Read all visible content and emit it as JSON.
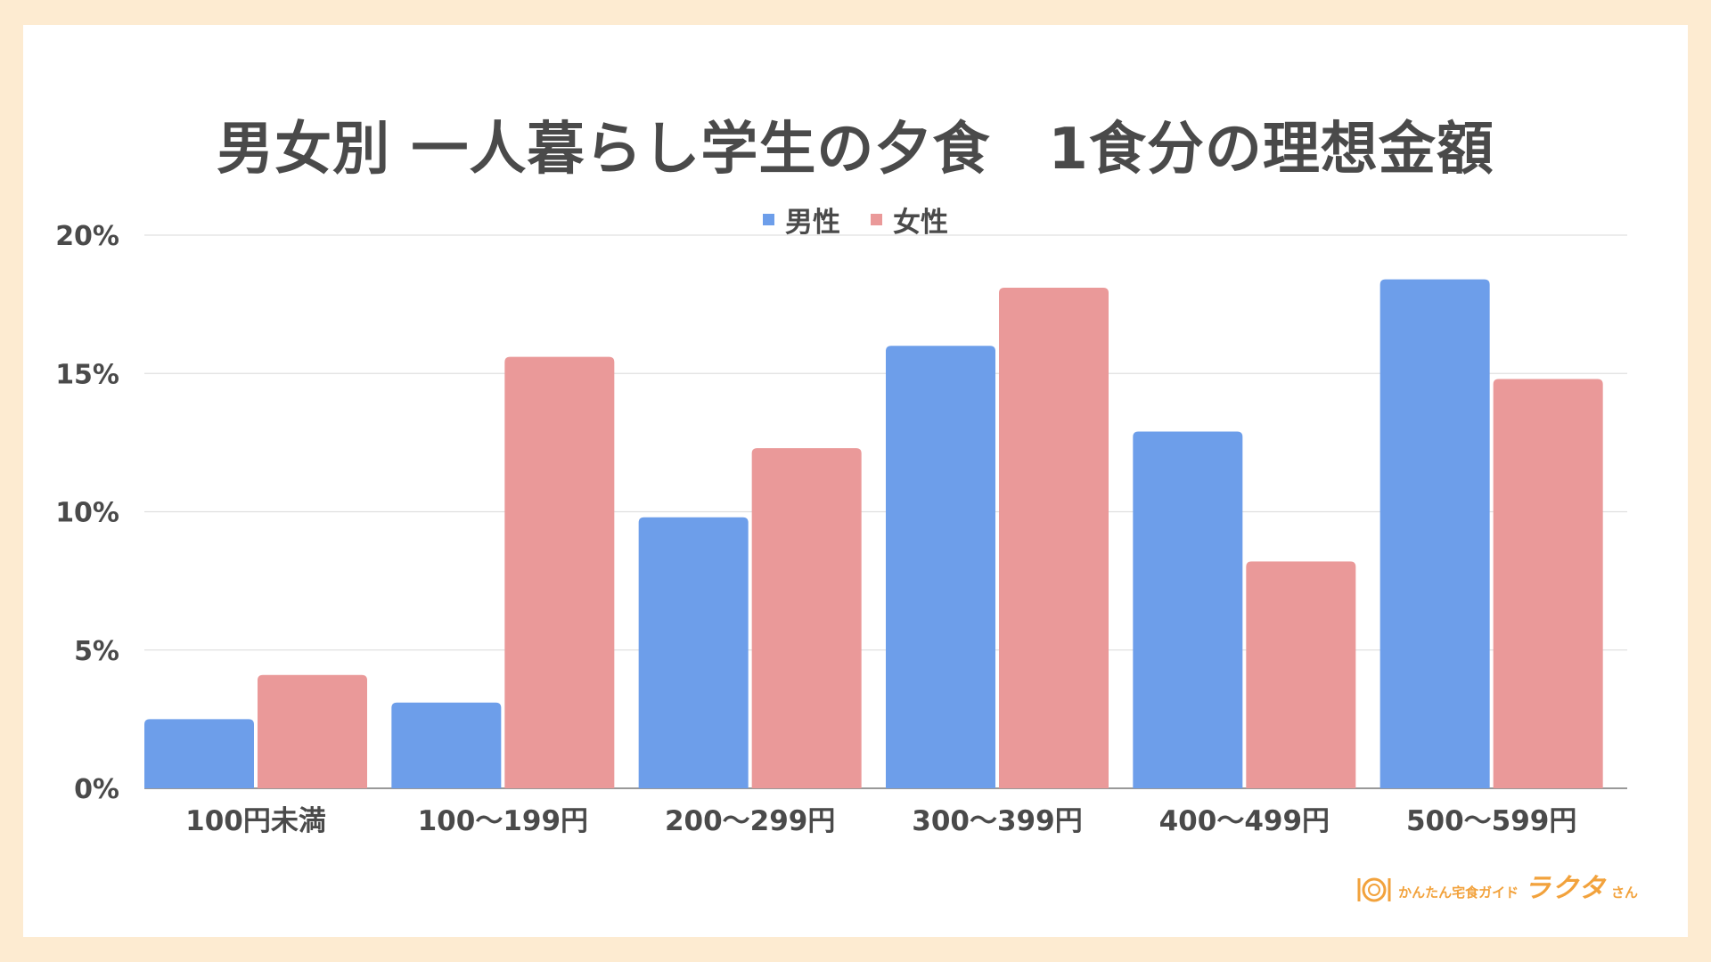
{
  "chart_data": {
    "type": "bar",
    "title": "男女別 一人暮らし学生の夕食　1食分の理想金額",
    "categories": [
      "100円未満",
      "100〜199円",
      "200〜299円",
      "300〜399円",
      "400〜499円",
      "500〜599円"
    ],
    "series": [
      {
        "name": "男性",
        "color": "#6d9eea",
        "values": [
          2.5,
          3.1,
          9.8,
          16.0,
          12.9,
          18.4
        ]
      },
      {
        "name": "女性",
        "color": "#ea9999",
        "values": [
          4.1,
          15.6,
          12.3,
          18.1,
          8.2,
          14.8
        ]
      }
    ],
    "ylim": [
      0,
      20
    ],
    "yticks": [
      "0%",
      "5%",
      "10%",
      "15%",
      "20%"
    ],
    "grid": true,
    "legend_position": "top-center"
  },
  "logo": {
    "small_text": "かんたん宅食ガイド",
    "big_text": "ラクタ",
    "suffix": "さん",
    "color": "#f2a23c"
  }
}
